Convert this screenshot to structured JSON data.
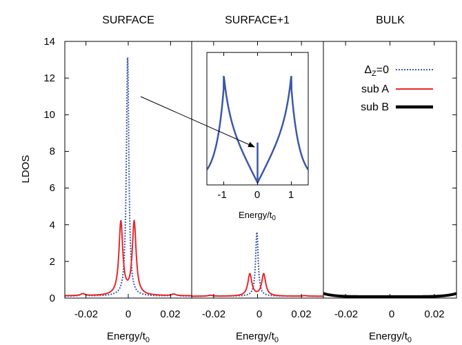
{
  "chart_data": {
    "type": "line",
    "ylabel": "LDOS",
    "ylim": [
      0,
      14
    ],
    "yticks": [
      "0",
      "2",
      "4",
      "6",
      "8",
      "10",
      "12",
      "14"
    ],
    "xlim": [
      -0.03,
      0.03
    ],
    "xticks": [
      {
        "value": -0.02,
        "label": "-0.02"
      },
      {
        "value": 0,
        "label": "0"
      },
      {
        "value": 0.02,
        "label": "0.02"
      }
    ],
    "xlabel_base": "Energy/t",
    "xlabel_sub": "0",
    "legend": {
      "placement": "top-right of BULK panel",
      "entries": [
        {
          "label_prefix": "Δ",
          "label_sub": "Z",
          "label_suffix": "=0",
          "style": "dotted",
          "color": "#3a57a8"
        },
        {
          "label": "sub A",
          "style": "solid",
          "color": "#e8262a"
        },
        {
          "label": "sub B",
          "style": "solid-thick",
          "color": "#000000"
        }
      ]
    },
    "panels": [
      {
        "title": "SURFACE",
        "series": [
          {
            "key": "dz0",
            "peak_center": -0.0003,
            "peak_height": 13.15,
            "width": 0.0007,
            "side_bumps": [
              [
                -0.0215,
                0.25
              ],
              [
                0.0215,
                0.22
              ]
            ],
            "baseline": 0.1
          },
          {
            "key": "subA",
            "peaks": [
              [
                -0.0035,
                4.1
              ],
              [
                0.0028,
                4.1
              ]
            ],
            "width": 0.0011,
            "side_bumps": [
              [
                -0.0215,
                0.22
              ],
              [
                0.0215,
                0.2
              ]
            ],
            "baseline": 0.12
          }
        ]
      },
      {
        "title": "SURFACE+1",
        "series": [
          {
            "key": "dz0",
            "peak_center": -0.0003,
            "peak_height": 3.6,
            "width": 0.0007,
            "side_bumps": [
              [
                -0.0215,
                0.15
              ],
              [
                0.0215,
                0.13
              ]
            ],
            "baseline": 0.1
          },
          {
            "key": "subA",
            "peaks": [
              [
                -0.0035,
                1.3
              ],
              [
                0.0028,
                1.3
              ]
            ],
            "width": 0.0011,
            "side_bumps": [
              [
                -0.0215,
                0.15
              ],
              [
                0.0215,
                0.13
              ]
            ],
            "baseline": 0.1
          }
        ]
      },
      {
        "title": "BULK",
        "series": [
          {
            "key": "subB",
            "baseline": 0.08,
            "edge_rise": 0.17
          }
        ]
      }
    ],
    "inset": {
      "xlim": [
        -1.5,
        1.5
      ],
      "xticks": [
        {
          "value": -1,
          "label": "-1"
        },
        {
          "value": 0,
          "label": "0"
        },
        {
          "value": 1,
          "label": "1"
        }
      ],
      "xlabel_base": "Energy/t",
      "xlabel_sub": "0",
      "ylim": [
        0,
        1.25
      ],
      "van_hove_positions": [
        -1,
        1
      ],
      "van_hove_height": 1.0,
      "zero_spike_height": 0.4,
      "color": "#3a57a8"
    }
  }
}
